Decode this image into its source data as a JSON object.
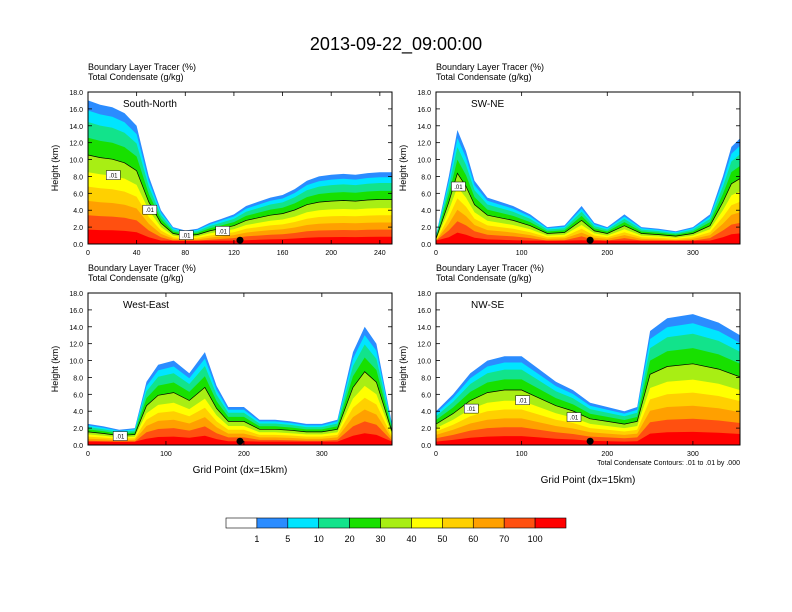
{
  "title": "2013-09-22_09:00:00",
  "chart_data": [
    {
      "type": "heatmap",
      "section": "South-North",
      "subtitle_lines": [
        "Boundary Layer Tracer    (%)",
        "Total Condensate    (g/kg)"
      ],
      "ylabel": "Height (km)",
      "xlabel": "",
      "xlim": [
        0,
        250
      ],
      "ylim": [
        0,
        18
      ],
      "xticks": [
        "0",
        "40",
        "80",
        "120",
        "160",
        "200",
        "240"
      ],
      "yticks": [
        "0.0",
        "2.0",
        "4.0",
        "6.0",
        "8.0",
        "10.0",
        "12.0",
        "14.0",
        "16.0",
        "18.0"
      ],
      "marker_x": 125,
      "contour_labels": [
        ".01",
        ".01",
        ".01",
        ".01"
      ],
      "tracer_profile": [
        {
          "x": 0,
          "top": 17.0
        },
        {
          "x": 10,
          "top": 16.5
        },
        {
          "x": 20,
          "top": 16.2
        },
        {
          "x": 30,
          "top": 15.5
        },
        {
          "x": 40,
          "top": 14.0
        },
        {
          "x": 50,
          "top": 8.0
        },
        {
          "x": 60,
          "top": 4.0
        },
        {
          "x": 70,
          "top": 2.0
        },
        {
          "x": 80,
          "top": 1.6
        },
        {
          "x": 90,
          "top": 1.8
        },
        {
          "x": 100,
          "top": 2.5
        },
        {
          "x": 110,
          "top": 3.0
        },
        {
          "x": 120,
          "top": 3.5
        },
        {
          "x": 130,
          "top": 4.5
        },
        {
          "x": 140,
          "top": 5.0
        },
        {
          "x": 150,
          "top": 5.5
        },
        {
          "x": 160,
          "top": 5.8
        },
        {
          "x": 170,
          "top": 6.5
        },
        {
          "x": 180,
          "top": 7.5
        },
        {
          "x": 190,
          "top": 8.0
        },
        {
          "x": 200,
          "top": 8.2
        },
        {
          "x": 210,
          "top": 8.3
        },
        {
          "x": 220,
          "top": 8.2
        },
        {
          "x": 230,
          "top": 8.4
        },
        {
          "x": 240,
          "top": 8.5
        },
        {
          "x": 250,
          "top": 8.5
        }
      ]
    },
    {
      "type": "heatmap",
      "section": "SW-NE",
      "subtitle_lines": [
        "Boundary Layer Tracer    (%)",
        "Total Condensate    (g/kg)"
      ],
      "ylabel": "Height (km)",
      "xlabel": "",
      "xlim": [
        0,
        355
      ],
      "ylim": [
        0,
        18
      ],
      "xticks": [
        "0",
        "100",
        "200",
        "300"
      ],
      "yticks": [
        "0.0",
        "2.0",
        "4.0",
        "6.0",
        "8.0",
        "10.0",
        "12.0",
        "14.0",
        "16.0",
        "18.0"
      ],
      "marker_x": 180,
      "contour_labels": [
        ".01"
      ],
      "tracer_profile": [
        {
          "x": 0,
          "top": 1.0
        },
        {
          "x": 15,
          "top": 8.0
        },
        {
          "x": 25,
          "top": 13.5
        },
        {
          "x": 35,
          "top": 11.0
        },
        {
          "x": 45,
          "top": 7.5
        },
        {
          "x": 60,
          "top": 5.5
        },
        {
          "x": 75,
          "top": 5.0
        },
        {
          "x": 90,
          "top": 4.5
        },
        {
          "x": 110,
          "top": 3.5
        },
        {
          "x": 130,
          "top": 2.0
        },
        {
          "x": 150,
          "top": 2.2
        },
        {
          "x": 170,
          "top": 4.5
        },
        {
          "x": 185,
          "top": 2.5
        },
        {
          "x": 200,
          "top": 2.0
        },
        {
          "x": 220,
          "top": 3.5
        },
        {
          "x": 240,
          "top": 2.0
        },
        {
          "x": 260,
          "top": 1.8
        },
        {
          "x": 280,
          "top": 1.5
        },
        {
          "x": 300,
          "top": 2.0
        },
        {
          "x": 320,
          "top": 3.5
        },
        {
          "x": 335,
          "top": 8.0
        },
        {
          "x": 345,
          "top": 11.5
        },
        {
          "x": 355,
          "top": 12.5
        }
      ]
    },
    {
      "type": "heatmap",
      "section": "West-East",
      "subtitle_lines": [
        "Boundary Layer Tracer    (%)",
        "Total Condensate    (g/kg)"
      ],
      "ylabel": "Height (km)",
      "xlabel": "Grid Point  (dx=15km)",
      "xlim": [
        0,
        390
      ],
      "ylim": [
        0,
        18
      ],
      "xticks": [
        "0",
        "100",
        "200",
        "300"
      ],
      "yticks": [
        "0.0",
        "2.0",
        "4.0",
        "6.0",
        "8.0",
        "10.0",
        "12.0",
        "14.0",
        "16.0",
        "18.0"
      ],
      "marker_x": 195,
      "contour_labels": [
        ".01"
      ],
      "tracer_profile": [
        {
          "x": 0,
          "top": 2.5
        },
        {
          "x": 20,
          "top": 2.2
        },
        {
          "x": 40,
          "top": 1.8
        },
        {
          "x": 60,
          "top": 2.0
        },
        {
          "x": 75,
          "top": 7.5
        },
        {
          "x": 90,
          "top": 9.5
        },
        {
          "x": 110,
          "top": 10.0
        },
        {
          "x": 130,
          "top": 8.5
        },
        {
          "x": 150,
          "top": 11.0
        },
        {
          "x": 165,
          "top": 7.0
        },
        {
          "x": 180,
          "top": 4.5
        },
        {
          "x": 200,
          "top": 4.5
        },
        {
          "x": 220,
          "top": 3.0
        },
        {
          "x": 240,
          "top": 3.0
        },
        {
          "x": 260,
          "top": 2.8
        },
        {
          "x": 280,
          "top": 2.5
        },
        {
          "x": 300,
          "top": 2.5
        },
        {
          "x": 320,
          "top": 3.0
        },
        {
          "x": 340,
          "top": 11.0
        },
        {
          "x": 355,
          "top": 14.0
        },
        {
          "x": 370,
          "top": 12.0
        },
        {
          "x": 390,
          "top": 2.5
        }
      ]
    },
    {
      "type": "heatmap",
      "section": "NW-SE",
      "subtitle_lines": [
        "Boundary Layer Tracer    (%)",
        "Total Condensate    (g/kg)"
      ],
      "ylabel": "Height (km)",
      "xlabel": "Grid Point  (dx=15km)",
      "xlim": [
        0,
        355
      ],
      "ylim": [
        0,
        18
      ],
      "xticks": [
        "0",
        "100",
        "200",
        "300"
      ],
      "yticks": [
        "0.0",
        "2.0",
        "4.0",
        "6.0",
        "8.0",
        "10.0",
        "12.0",
        "14.0",
        "16.0",
        "18.0"
      ],
      "marker_x": 180,
      "contour_labels": [
        ".01",
        ".01",
        ".01"
      ],
      "footnote": "Total Condensate Contours: .01 to .01 by .000",
      "tracer_profile": [
        {
          "x": 0,
          "top": 4.0
        },
        {
          "x": 20,
          "top": 6.0
        },
        {
          "x": 40,
          "top": 8.5
        },
        {
          "x": 60,
          "top": 10.0
        },
        {
          "x": 80,
          "top": 10.5
        },
        {
          "x": 100,
          "top": 10.5
        },
        {
          "x": 120,
          "top": 9.0
        },
        {
          "x": 140,
          "top": 7.5
        },
        {
          "x": 160,
          "top": 6.5
        },
        {
          "x": 180,
          "top": 5.0
        },
        {
          "x": 200,
          "top": 4.5
        },
        {
          "x": 220,
          "top": 4.0
        },
        {
          "x": 235,
          "top": 4.5
        },
        {
          "x": 250,
          "top": 13.5
        },
        {
          "x": 270,
          "top": 15.0
        },
        {
          "x": 300,
          "top": 15.5
        },
        {
          "x": 330,
          "top": 14.5
        },
        {
          "x": 355,
          "top": 13.0
        }
      ]
    }
  ],
  "colorbar": {
    "labels": [
      "1",
      "5",
      "10",
      "20",
      "30",
      "40",
      "50",
      "60",
      "70",
      "100"
    ],
    "colors": [
      "#ffffff",
      "#2b8cff",
      "#00e5ff",
      "#12e38b",
      "#18e000",
      "#a8ee14",
      "#ffff00",
      "#ffd000",
      "#ffa000",
      "#ff5010",
      "#ff0000"
    ]
  }
}
